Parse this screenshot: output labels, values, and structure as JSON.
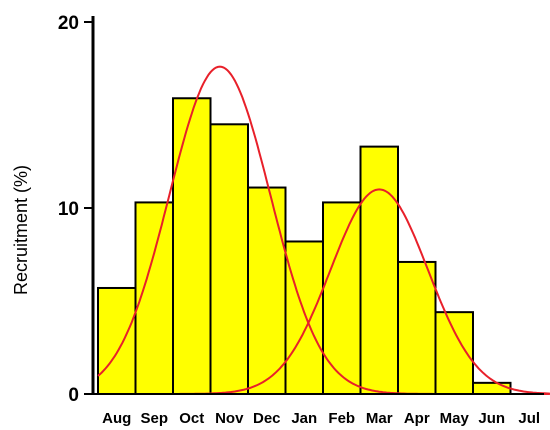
{
  "chart_data": {
    "type": "bar",
    "title": "",
    "xlabel": "",
    "ylabel": "Recruitment (%)",
    "categories": [
      "Aug",
      "Sep",
      "Oct",
      "Nov",
      "Dec",
      "Jan",
      "Feb",
      "Mar",
      "Apr",
      "May",
      "Jun",
      "Jul"
    ],
    "values": [
      5.7,
      10.3,
      15.9,
      14.5,
      11.1,
      8.2,
      10.3,
      13.3,
      7.1,
      4.4,
      0.6,
      0
    ],
    "ylim": [
      0,
      20
    ],
    "yticks": [
      0,
      10,
      20
    ],
    "grid": false,
    "bar_color": "#FFFF00",
    "bar_edge_color": "#000000",
    "fitted_curves": [
      {
        "type": "normal",
        "mean_month_index": 2.75,
        "sd_months": 1.35,
        "peak": 17.6,
        "color": "#E8202A"
      },
      {
        "type": "normal",
        "mean_month_index": 7.0,
        "sd_months": 1.3,
        "peak": 11.0,
        "color": "#E8202A"
      }
    ]
  }
}
